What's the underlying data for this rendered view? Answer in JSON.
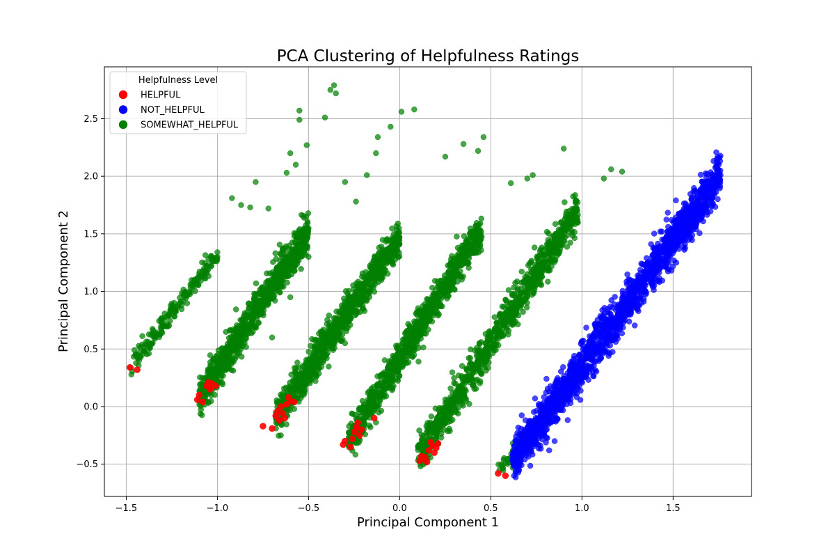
{
  "chart_data": {
    "type": "scatter",
    "title": "PCA Clustering of Helpfulness Ratings",
    "xlabel": "Principal Component 1",
    "ylabel": "Principal Component 2",
    "xlim": [
      -1.62,
      1.93
    ],
    "ylim": [
      -0.78,
      2.95
    ],
    "xticks": [
      -1.5,
      -1.0,
      -0.5,
      0.0,
      0.5,
      1.0,
      1.5
    ],
    "yticks": [
      -0.5,
      0.0,
      0.5,
      1.0,
      1.5,
      2.0,
      2.5
    ],
    "xtick_labels": [
      "−1.5",
      "−1.0",
      "−0.5",
      "0.0",
      "0.5",
      "1.0",
      "1.5"
    ],
    "ytick_labels": [
      "−0.5",
      "0.0",
      "0.5",
      "1.0",
      "1.5",
      "2.0",
      "2.5"
    ],
    "grid": true,
    "legend": {
      "title": "Helpfulness Level",
      "placement": "upper-left"
    },
    "series": [
      {
        "name": "HELPFUL",
        "color": "#ff0000",
        "points": [
          [
            -1.48,
            0.34
          ],
          [
            -1.44,
            0.32
          ],
          [
            -1.11,
            0.06
          ],
          [
            -1.1,
            0.1
          ],
          [
            -1.08,
            0.04
          ],
          [
            -1.06,
            0.18
          ],
          [
            -1.05,
            0.21
          ],
          [
            -1.04,
            0.15
          ],
          [
            -1.03,
            0.2
          ],
          [
            -1.01,
            0.18
          ],
          [
            -0.75,
            -0.17
          ],
          [
            -0.7,
            -0.19
          ],
          [
            -0.68,
            -0.08
          ],
          [
            -0.67,
            -0.04
          ],
          [
            -0.66,
            -0.12
          ],
          [
            -0.65,
            0.0
          ],
          [
            -0.64,
            -0.06
          ],
          [
            -0.63,
            -0.1
          ],
          [
            -0.62,
            0.02
          ],
          [
            -0.61,
            0.08
          ],
          [
            -0.6,
            0.05
          ],
          [
            -0.58,
            0.04
          ],
          [
            -0.31,
            -0.33
          ],
          [
            -0.3,
            -0.3
          ],
          [
            -0.27,
            -0.35
          ],
          [
            -0.26,
            -0.28
          ],
          [
            -0.25,
            -0.22
          ],
          [
            -0.24,
            -0.18
          ],
          [
            -0.23,
            -0.14
          ],
          [
            -0.22,
            -0.25
          ],
          [
            -0.21,
            -0.2
          ],
          [
            -0.14,
            -0.1
          ],
          [
            0.11,
            -0.47
          ],
          [
            0.12,
            -0.43
          ],
          [
            0.14,
            -0.44
          ],
          [
            0.15,
            -0.48
          ],
          [
            0.16,
            -0.38
          ],
          [
            0.17,
            -0.31
          ],
          [
            0.18,
            -0.34
          ],
          [
            0.19,
            -0.4
          ],
          [
            0.2,
            -0.36
          ],
          [
            0.21,
            -0.32
          ],
          [
            0.54,
            -0.58
          ],
          [
            0.58,
            -0.6
          ]
        ]
      },
      {
        "name": "NOT_HELPFUL",
        "color": "#0000ff",
        "cluster": {
          "x_range": [
            0.62,
            1.76
          ],
          "y_at_start": -0.47,
          "y_at_end": 2.01,
          "spread": 0.16
        },
        "points": [
          [
            0.62,
            -0.47
          ],
          [
            0.66,
            -0.4
          ],
          [
            0.7,
            -0.35
          ],
          [
            0.73,
            -0.28
          ],
          [
            0.76,
            -0.33
          ],
          [
            0.78,
            -0.22
          ],
          [
            0.8,
            -0.16
          ],
          [
            0.82,
            -0.38
          ],
          [
            0.85,
            -0.3
          ],
          [
            0.88,
            -0.02
          ],
          [
            0.92,
            0.06
          ],
          [
            0.96,
            0.12
          ],
          [
            1.0,
            0.25
          ],
          [
            1.04,
            0.3
          ],
          [
            1.08,
            0.45
          ],
          [
            1.12,
            0.55
          ],
          [
            1.16,
            0.68
          ],
          [
            1.2,
            0.8
          ],
          [
            1.24,
            0.92
          ],
          [
            1.28,
            1.02
          ],
          [
            1.32,
            1.12
          ],
          [
            1.36,
            1.25
          ],
          [
            1.4,
            1.38
          ],
          [
            1.44,
            1.45
          ],
          [
            1.48,
            1.52
          ],
          [
            1.52,
            1.62
          ],
          [
            1.56,
            1.72
          ],
          [
            1.6,
            1.8
          ],
          [
            1.65,
            1.88
          ],
          [
            1.7,
            1.92
          ],
          [
            1.76,
            2.01
          ]
        ]
      },
      {
        "name": "SOMEWHAT_HELPFUL",
        "color": "#008000",
        "clusters": [
          {
            "x_range": [
              -1.48,
              -1.0
            ],
            "y_at_start": 0.35,
            "y_at_end": 1.32,
            "spread": 0.08
          },
          {
            "x_range": [
              -1.1,
              -0.5
            ],
            "y_at_start": 0.08,
            "y_at_end": 1.52,
            "spread": 0.13
          },
          {
            "x_range": [
              -0.68,
              0.0
            ],
            "y_at_start": -0.1,
            "y_at_end": 1.48,
            "spread": 0.13
          },
          {
            "x_range": [
              -0.28,
              0.45
            ],
            "y_at_start": -0.3,
            "y_at_end": 1.55,
            "spread": 0.13
          },
          {
            "x_range": [
              0.1,
              0.98
            ],
            "y_at_start": -0.43,
            "y_at_end": 1.72,
            "spread": 0.14
          },
          {
            "x_range": [
              0.54,
              0.98
            ],
            "y_at_start": -0.56,
            "y_at_end": 0.22,
            "spread": 0.05
          }
        ],
        "points": [
          [
            -1.43,
            0.4
          ],
          [
            -1.36,
            0.55
          ],
          [
            -1.3,
            0.7
          ],
          [
            -1.24,
            0.85
          ],
          [
            -1.18,
            0.98
          ],
          [
            -1.12,
            1.1
          ],
          [
            -1.06,
            1.22
          ],
          [
            -1.0,
            1.3
          ],
          [
            -0.92,
            1.81
          ],
          [
            -0.87,
            1.75
          ],
          [
            -0.82,
            1.73
          ],
          [
            -0.79,
            1.95
          ],
          [
            -0.72,
            1.72
          ],
          [
            -0.62,
            2.03
          ],
          [
            -0.6,
            2.2
          ],
          [
            -0.57,
            2.1
          ],
          [
            -0.55,
            2.57
          ],
          [
            -0.55,
            2.49
          ],
          [
            -0.51,
            2.27
          ],
          [
            -0.41,
            2.51
          ],
          [
            -0.38,
            2.75
          ],
          [
            -0.36,
            2.79
          ],
          [
            -0.35,
            2.72
          ],
          [
            -0.3,
            1.95
          ],
          [
            -0.24,
            1.78
          ],
          [
            -0.18,
            2.01
          ],
          [
            -0.13,
            2.2
          ],
          [
            -0.12,
            2.34
          ],
          [
            -0.05,
            2.43
          ],
          [
            0.01,
            2.56
          ],
          [
            0.08,
            2.58
          ],
          [
            0.25,
            2.17
          ],
          [
            0.35,
            2.28
          ],
          [
            0.43,
            2.22
          ],
          [
            0.46,
            2.34
          ],
          [
            0.61,
            1.94
          ],
          [
            0.7,
            1.98
          ],
          [
            0.73,
            2.01
          ],
          [
            0.9,
            2.24
          ],
          [
            1.12,
            1.98
          ],
          [
            1.16,
            2.06
          ],
          [
            1.22,
            2.04
          ],
          [
            -0.7,
            0.6
          ],
          [
            -0.6,
            0.95
          ],
          [
            -0.5,
            1.3
          ],
          [
            -0.3,
            0.55
          ],
          [
            -0.2,
            0.85
          ],
          [
            -0.1,
            1.1
          ],
          [
            0.1,
            0.6
          ],
          [
            0.2,
            0.9
          ],
          [
            0.3,
            1.15
          ],
          [
            0.45,
            0.4
          ],
          [
            0.55,
            0.8
          ],
          [
            0.7,
            1.15
          ],
          [
            0.85,
            1.45
          ],
          [
            0.62,
            -0.53
          ],
          [
            0.66,
            -0.46
          ],
          [
            0.72,
            -0.36
          ]
        ]
      }
    ]
  }
}
